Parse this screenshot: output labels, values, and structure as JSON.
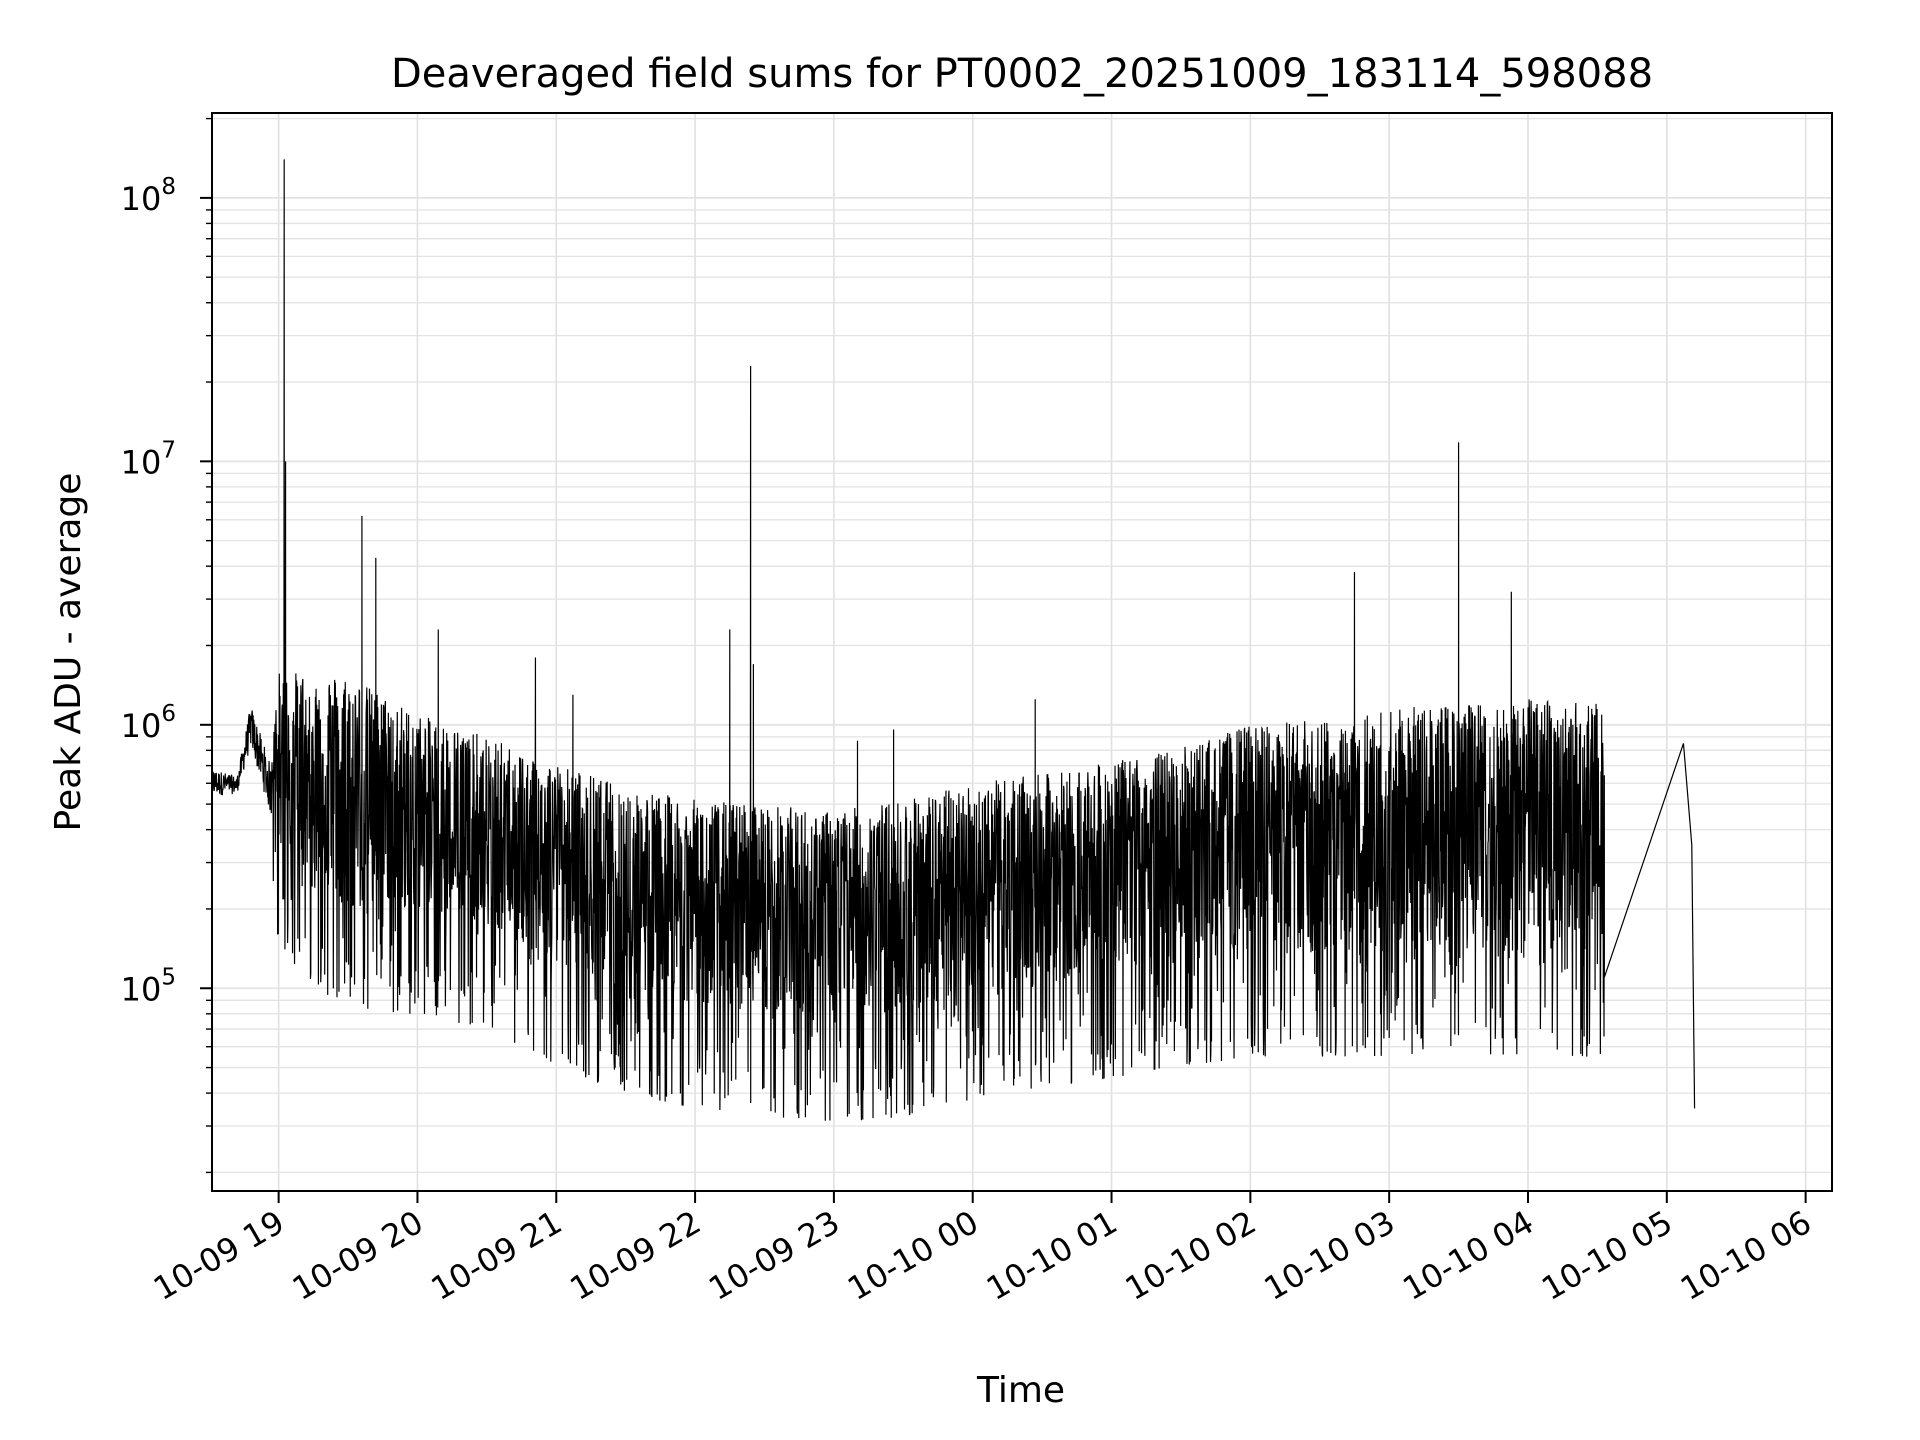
{
  "chart_data": {
    "type": "line",
    "title": "Deaveraged field sums for PT0002_20251009_183114_598088",
    "xlabel": "Time",
    "ylabel": "Peak ADU - average",
    "yscale": "log",
    "ylim": [
      17000,
      210000000
    ],
    "xlim_hours_from_10_09_18_00": [
      0.52,
      12.19
    ],
    "grid": true,
    "line_color": "#000000",
    "x_ticks": [
      {
        "label": "10-09 19",
        "hour": 1
      },
      {
        "label": "10-09 20",
        "hour": 2
      },
      {
        "label": "10-09 21",
        "hour": 3
      },
      {
        "label": "10-09 22",
        "hour": 4
      },
      {
        "label": "10-09 23",
        "hour": 5
      },
      {
        "label": "10-10 00",
        "hour": 6
      },
      {
        "label": "10-10 01",
        "hour": 7
      },
      {
        "label": "10-10 02",
        "hour": 8
      },
      {
        "label": "10-10 03",
        "hour": 9
      },
      {
        "label": "10-10 04",
        "hour": 10
      },
      {
        "label": "10-10 05",
        "hour": 11
      },
      {
        "label": "10-10 06",
        "hour": 12
      }
    ],
    "y_ticks": [
      {
        "base": "10",
        "exp": "5",
        "value": 100000
      },
      {
        "base": "10",
        "exp": "6",
        "value": 1000000
      },
      {
        "base": "10",
        "exp": "7",
        "value": 10000000
      },
      {
        "base": "10",
        "exp": "8",
        "value": 100000000
      }
    ],
    "envelope": [
      {
        "hour": 0.52,
        "upper": 800000,
        "lower": 430000
      },
      {
        "hour": 0.7,
        "upper": 700000,
        "lower": 480000
      },
      {
        "hour": 0.8,
        "upper": 1500000,
        "lower": 600000
      },
      {
        "hour": 0.95,
        "upper": 900000,
        "lower": 300000
      },
      {
        "hour": 1.0,
        "upper": 1600000,
        "lower": 140000
      },
      {
        "hour": 1.5,
        "upper": 1550000,
        "lower": 80000
      },
      {
        "hour": 2.0,
        "upper": 1100000,
        "lower": 80000
      },
      {
        "hour": 2.5,
        "upper": 900000,
        "lower": 70000
      },
      {
        "hour": 3.0,
        "upper": 720000,
        "lower": 50000
      },
      {
        "hour": 3.5,
        "upper": 580000,
        "lower": 40000
      },
      {
        "hour": 4.0,
        "upper": 520000,
        "lower": 35000
      },
      {
        "hour": 4.5,
        "upper": 500000,
        "lower": 32000
      },
      {
        "hour": 5.0,
        "upper": 470000,
        "lower": 31000
      },
      {
        "hour": 5.5,
        "upper": 520000,
        "lower": 32000
      },
      {
        "hour": 6.0,
        "upper": 600000,
        "lower": 38000
      },
      {
        "hour": 6.5,
        "upper": 650000,
        "lower": 42000
      },
      {
        "hour": 7.0,
        "upper": 720000,
        "lower": 45000
      },
      {
        "hour": 7.5,
        "upper": 820000,
        "lower": 50000
      },
      {
        "hour": 8.0,
        "upper": 1000000,
        "lower": 55000
      },
      {
        "hour": 8.5,
        "upper": 1050000,
        "lower": 55000
      },
      {
        "hour": 9.0,
        "upper": 1150000,
        "lower": 55000
      },
      {
        "hour": 9.5,
        "upper": 1200000,
        "lower": 55000
      },
      {
        "hour": 10.0,
        "upper": 1250000,
        "lower": 55000
      },
      {
        "hour": 10.55,
        "upper": 1200000,
        "lower": 55000
      }
    ],
    "spikes": [
      {
        "hour": 1.04,
        "value": 140000000
      },
      {
        "hour": 1.05,
        "value": 10000000
      },
      {
        "hour": 1.6,
        "value": 6200000
      },
      {
        "hour": 1.7,
        "value": 4300000
      },
      {
        "hour": 2.15,
        "value": 2300000
      },
      {
        "hour": 2.85,
        "value": 1800000
      },
      {
        "hour": 3.12,
        "value": 1300000
      },
      {
        "hour": 4.25,
        "value": 2300000
      },
      {
        "hour": 4.4,
        "value": 23000000
      },
      {
        "hour": 4.42,
        "value": 1700000
      },
      {
        "hour": 5.17,
        "value": 870000
      },
      {
        "hour": 5.43,
        "value": 960000
      },
      {
        "hour": 6.45,
        "value": 1250000
      },
      {
        "hour": 8.75,
        "value": 3800000
      },
      {
        "hour": 9.5,
        "value": 11800000
      },
      {
        "hour": 9.88,
        "value": 3200000
      }
    ],
    "tail": [
      {
        "hour": 10.55,
        "value": 110000
      },
      {
        "hour": 11.12,
        "value": 850000
      },
      {
        "hour": 11.18,
        "value": 350000
      },
      {
        "hour": 11.2,
        "value": 35000
      }
    ]
  }
}
